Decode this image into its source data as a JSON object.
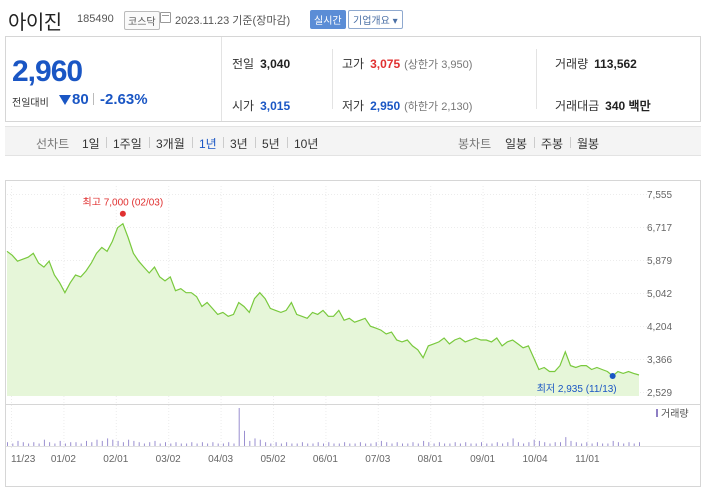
{
  "header": {
    "name": "아이진",
    "code": "185490",
    "market": "코스닥",
    "date": "2023.11.23 기준(장마감)",
    "realtime": "실시간",
    "overview": "기업개요 ▾"
  },
  "quote": {
    "price": "2,960",
    "change_label": "전일대비",
    "change_amount": "80",
    "change_pct": "-2.63%",
    "prev_close_label": "전일",
    "prev_close": "3,040",
    "high_label": "고가",
    "high": "3,075",
    "upper_limit": "(상한가 3,950)",
    "volume_label": "거래량",
    "volume": "113,562",
    "open_label": "시가",
    "open": "3,015",
    "low_label": "저가",
    "low": "2,950",
    "lower_limit": "(하한가 2,130)",
    "value_label": "거래대금",
    "value": "340 백만"
  },
  "tabs": {
    "line_label": "선차트",
    "line_periods": [
      "1일",
      "1주일",
      "3개월",
      "1년",
      "3년",
      "5년",
      "10년"
    ],
    "active": "1년",
    "candle_label": "봉차트",
    "candle_periods": [
      "일봉",
      "주봉",
      "월봉"
    ]
  },
  "chart_data": {
    "type": "area",
    "yticks": [
      "7,555",
      "6,717",
      "5,879",
      "5,042",
      "4,204",
      "3,366",
      "2,529"
    ],
    "ylim": [
      2529,
      7555
    ],
    "xticks": [
      "11/23",
      "01/02",
      "02/01",
      "03/02",
      "04/03",
      "05/02",
      "06/01",
      "07/03",
      "08/01",
      "09/01",
      "10/04",
      "11/01"
    ],
    "max_annotation": "최고 7,000 (02/03)",
    "min_annotation": "최저 2,935 (11/13)",
    "volume_label": "거래량",
    "line_color": "#79c93d",
    "fill_color": "#e6f6d9",
    "values": [
      6100,
      6000,
      5850,
      5900,
      5950,
      6050,
      5800,
      5700,
      5850,
      5500,
      5300,
      5050,
      5300,
      5500,
      5450,
      5600,
      5800,
      6050,
      6200,
      6100,
      6350,
      6700,
      6800,
      6450,
      6050,
      5850,
      5700,
      5550,
      5700,
      5450,
      5350,
      5450,
      5100,
      5150,
      5050,
      5050,
      4950,
      4700,
      4800,
      4650,
      4500,
      4550,
      4450,
      4500,
      4800,
      4700,
      4550,
      4900,
      5050,
      4900,
      4650,
      4600,
      4550,
      4600,
      4800,
      4500,
      4450,
      4400,
      4550,
      4500,
      4600,
      4450,
      4450,
      4600,
      4350,
      4400,
      4300,
      4350,
      4400,
      4200,
      4150,
      4100,
      4000,
      4050,
      3850,
      3800,
      3850,
      3700,
      3600,
      3400,
      3700,
      3750,
      3800,
      3900,
      3750,
      3850,
      3900,
      3800,
      3850,
      3900,
      3850,
      3850,
      3800,
      3900,
      3700,
      3800,
      3850,
      3750,
      3650,
      3700,
      3400,
      3100,
      3150,
      3050,
      3050,
      3200,
      3550,
      3200,
      3150,
      3200,
      3200,
      3100,
      3150,
      3100,
      3050,
      2935,
      3050,
      3000,
      3050,
      3000,
      2960
    ],
    "volume": [
      3,
      2,
      4,
      3,
      2,
      3,
      2,
      5,
      3,
      2,
      4,
      2,
      3,
      3,
      2,
      4,
      3,
      5,
      4,
      6,
      5,
      4,
      3,
      5,
      4,
      3,
      2,
      3,
      4,
      2,
      3,
      2,
      3,
      2,
      2,
      3,
      2,
      3,
      2,
      3,
      2,
      2,
      3,
      2,
      30,
      12,
      4,
      6,
      5,
      3,
      2,
      3,
      2,
      3,
      2,
      2,
      3,
      2,
      2,
      3,
      2,
      3,
      2,
      2,
      3,
      2,
      2,
      3,
      2,
      2,
      3,
      4,
      3,
      2,
      3,
      2,
      2,
      3,
      2,
      4,
      3,
      2,
      3,
      2,
      2,
      3,
      2,
      3,
      2,
      2,
      3,
      2,
      2,
      3,
      2,
      3,
      6,
      3,
      2,
      3,
      5,
      4,
      3,
      2,
      3,
      3,
      7,
      4,
      3,
      2,
      3,
      2,
      3,
      2,
      2,
      4,
      3,
      2,
      3,
      2,
      3
    ]
  }
}
